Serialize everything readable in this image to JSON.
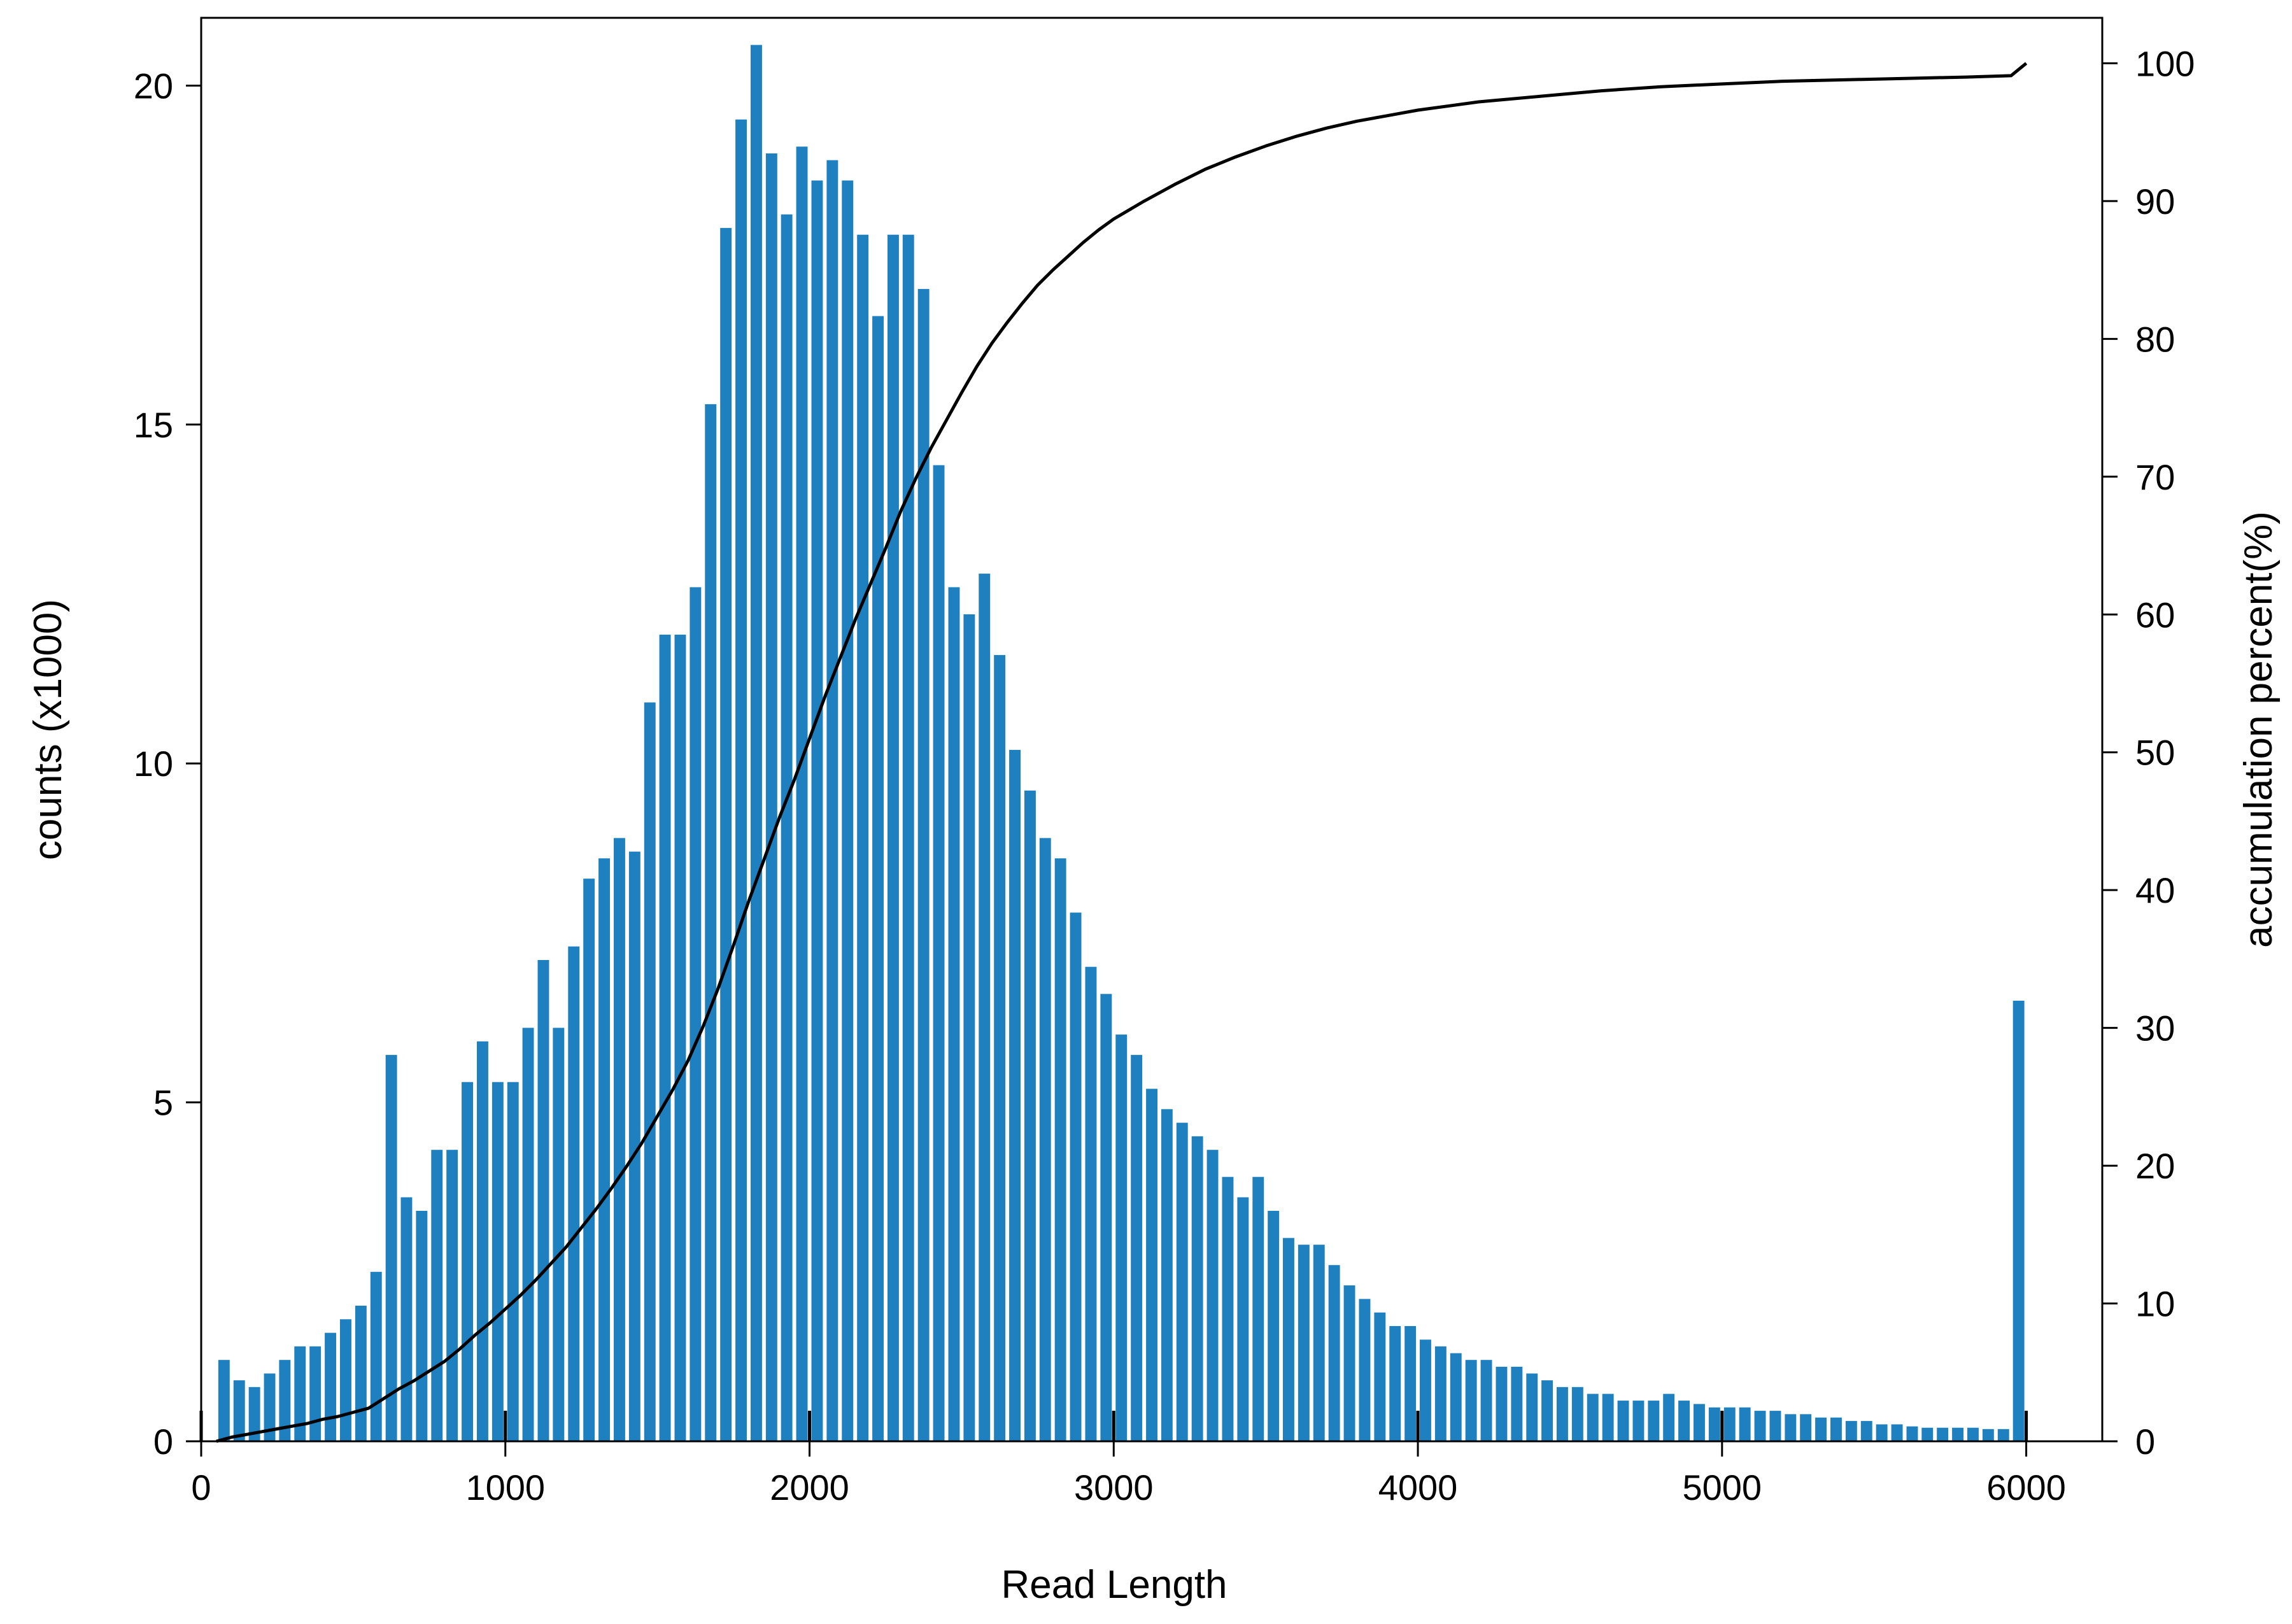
{
  "chart_data": {
    "type": "bar",
    "xlabel": "Read Length",
    "ylabel": "counts (x1000)",
    "y2label": "accumulation percent(%)",
    "xlim": [
      0,
      6250
    ],
    "ylim": [
      0,
      21
    ],
    "y2lim": [
      0,
      103.3
    ],
    "x_ticks": [
      "0",
      "1000",
      "2000",
      "3000",
      "4000",
      "5000",
      "6000"
    ],
    "y_ticks": [
      "0",
      "5",
      "10",
      "15",
      "20"
    ],
    "y2_ticks": [
      "0",
      "10",
      "20",
      "30",
      "40",
      "50",
      "60",
      "70",
      "80",
      "90",
      "100"
    ],
    "grid": false,
    "legend": "none",
    "bar_color": "#1f80bf",
    "line_color": "#000000",
    "bin_width": 50,
    "bins": {
      "x": [
        75,
        125,
        175,
        225,
        275,
        325,
        375,
        425,
        475,
        525,
        575,
        625,
        675,
        725,
        775,
        825,
        875,
        925,
        975,
        1025,
        1075,
        1125,
        1175,
        1225,
        1275,
        1325,
        1375,
        1425,
        1475,
        1525,
        1575,
        1625,
        1675,
        1725,
        1775,
        1825,
        1875,
        1925,
        1975,
        2025,
        2075,
        2125,
        2175,
        2225,
        2275,
        2325,
        2375,
        2425,
        2475,
        2525,
        2575,
        2625,
        2675,
        2725,
        2775,
        2825,
        2875,
        2925,
        2975,
        3025,
        3075,
        3125,
        3175,
        3225,
        3275,
        3325,
        3375,
        3425,
        3475,
        3525,
        3575,
        3625,
        3675,
        3725,
        3775,
        3825,
        3875,
        3925,
        3975,
        4025,
        4075,
        4125,
        4175,
        4225,
        4275,
        4325,
        4375,
        4425,
        4475,
        4525,
        4575,
        4625,
        4675,
        4725,
        4775,
        4825,
        4875,
        4925,
        4975,
        5025,
        5075,
        5125,
        5175,
        5225,
        5275,
        5325,
        5375,
        5425,
        5475,
        5525,
        5575,
        5625,
        5675,
        5725,
        5775,
        5825,
        5875,
        5925,
        5975
      ],
      "values": [
        1.2,
        0.9,
        0.8,
        1.0,
        1.2,
        1.4,
        1.4,
        1.6,
        1.8,
        2.0,
        2.5,
        5.7,
        3.6,
        3.4,
        4.3,
        4.3,
        5.3,
        5.9,
        5.3,
        5.3,
        6.1,
        7.1,
        6.1,
        7.3,
        8.3,
        8.6,
        8.9,
        8.7,
        10.9,
        11.9,
        11.9,
        12.6,
        15.3,
        17.9,
        19.5,
        20.6,
        19.0,
        18.1,
        19.1,
        18.6,
        18.9,
        18.6,
        17.8,
        16.6,
        17.8,
        17.8,
        17.0,
        14.4,
        12.6,
        12.2,
        12.8,
        11.6,
        10.2,
        9.6,
        8.9,
        8.6,
        7.8,
        7.0,
        6.6,
        6.0,
        5.7,
        5.2,
        4.9,
        4.7,
        4.5,
        4.3,
        3.9,
        3.6,
        3.9,
        3.4,
        3.0,
        2.9,
        2.9,
        2.6,
        2.3,
        2.1,
        1.9,
        1.7,
        1.7,
        1.5,
        1.4,
        1.3,
        1.2,
        1.2,
        1.1,
        1.1,
        1.0,
        0.9,
        0.8,
        0.8,
        0.7,
        0.7,
        0.6,
        0.6,
        0.6,
        0.7,
        0.6,
        0.55,
        0.5,
        0.5,
        0.5,
        0.45,
        0.45,
        0.4,
        0.4,
        0.35,
        0.35,
        0.3,
        0.3,
        0.25,
        0.25,
        0.22,
        0.2,
        0.2,
        0.2,
        0.2,
        0.18,
        0.18,
        6.5
      ]
    },
    "cumulative": {
      "x": [
        50,
        100,
        150,
        200,
        250,
        300,
        350,
        400,
        450,
        500,
        550,
        600,
        650,
        700,
        750,
        800,
        850,
        900,
        950,
        1000,
        1050,
        1100,
        1150,
        1200,
        1250,
        1300,
        1350,
        1400,
        1450,
        1500,
        1550,
        1600,
        1650,
        1700,
        1750,
        1800,
        1850,
        1900,
        1950,
        2000,
        2050,
        2100,
        2150,
        2200,
        2250,
        2300,
        2350,
        2400,
        2450,
        2500,
        2550,
        2600,
        2650,
        2700,
        2750,
        2800,
        2850,
        2900,
        2950,
        3000,
        3100,
        3200,
        3300,
        3400,
        3500,
        3600,
        3700,
        3800,
        3900,
        4000,
        4200,
        4400,
        4600,
        4800,
        5000,
        5200,
        5400,
        5600,
        5800,
        5950,
        6000
      ],
      "values": [
        0.0,
        0.3,
        0.5,
        0.7,
        0.9,
        1.1,
        1.3,
        1.6,
        1.8,
        2.1,
        2.4,
        3.1,
        3.8,
        4.4,
        5.1,
        5.8,
        6.7,
        7.7,
        8.6,
        9.6,
        10.6,
        11.7,
        12.9,
        14.1,
        15.5,
        16.9,
        18.4,
        20.0,
        21.7,
        23.6,
        25.5,
        27.6,
        30.1,
        32.9,
        36.0,
        39.2,
        42.2,
        45.2,
        48.0,
        51.0,
        54.0,
        56.8,
        59.6,
        62.2,
        64.8,
        67.5,
        69.9,
        72.1,
        74.1,
        76.1,
        78.0,
        79.7,
        81.2,
        82.6,
        83.9,
        85.0,
        86.0,
        87.0,
        87.9,
        88.7,
        90.0,
        91.2,
        92.3,
        93.2,
        94.0,
        94.7,
        95.3,
        95.8,
        96.2,
        96.6,
        97.2,
        97.6,
        98.0,
        98.3,
        98.5,
        98.7,
        98.8,
        98.9,
        99.0,
        99.1,
        100.0
      ]
    }
  }
}
